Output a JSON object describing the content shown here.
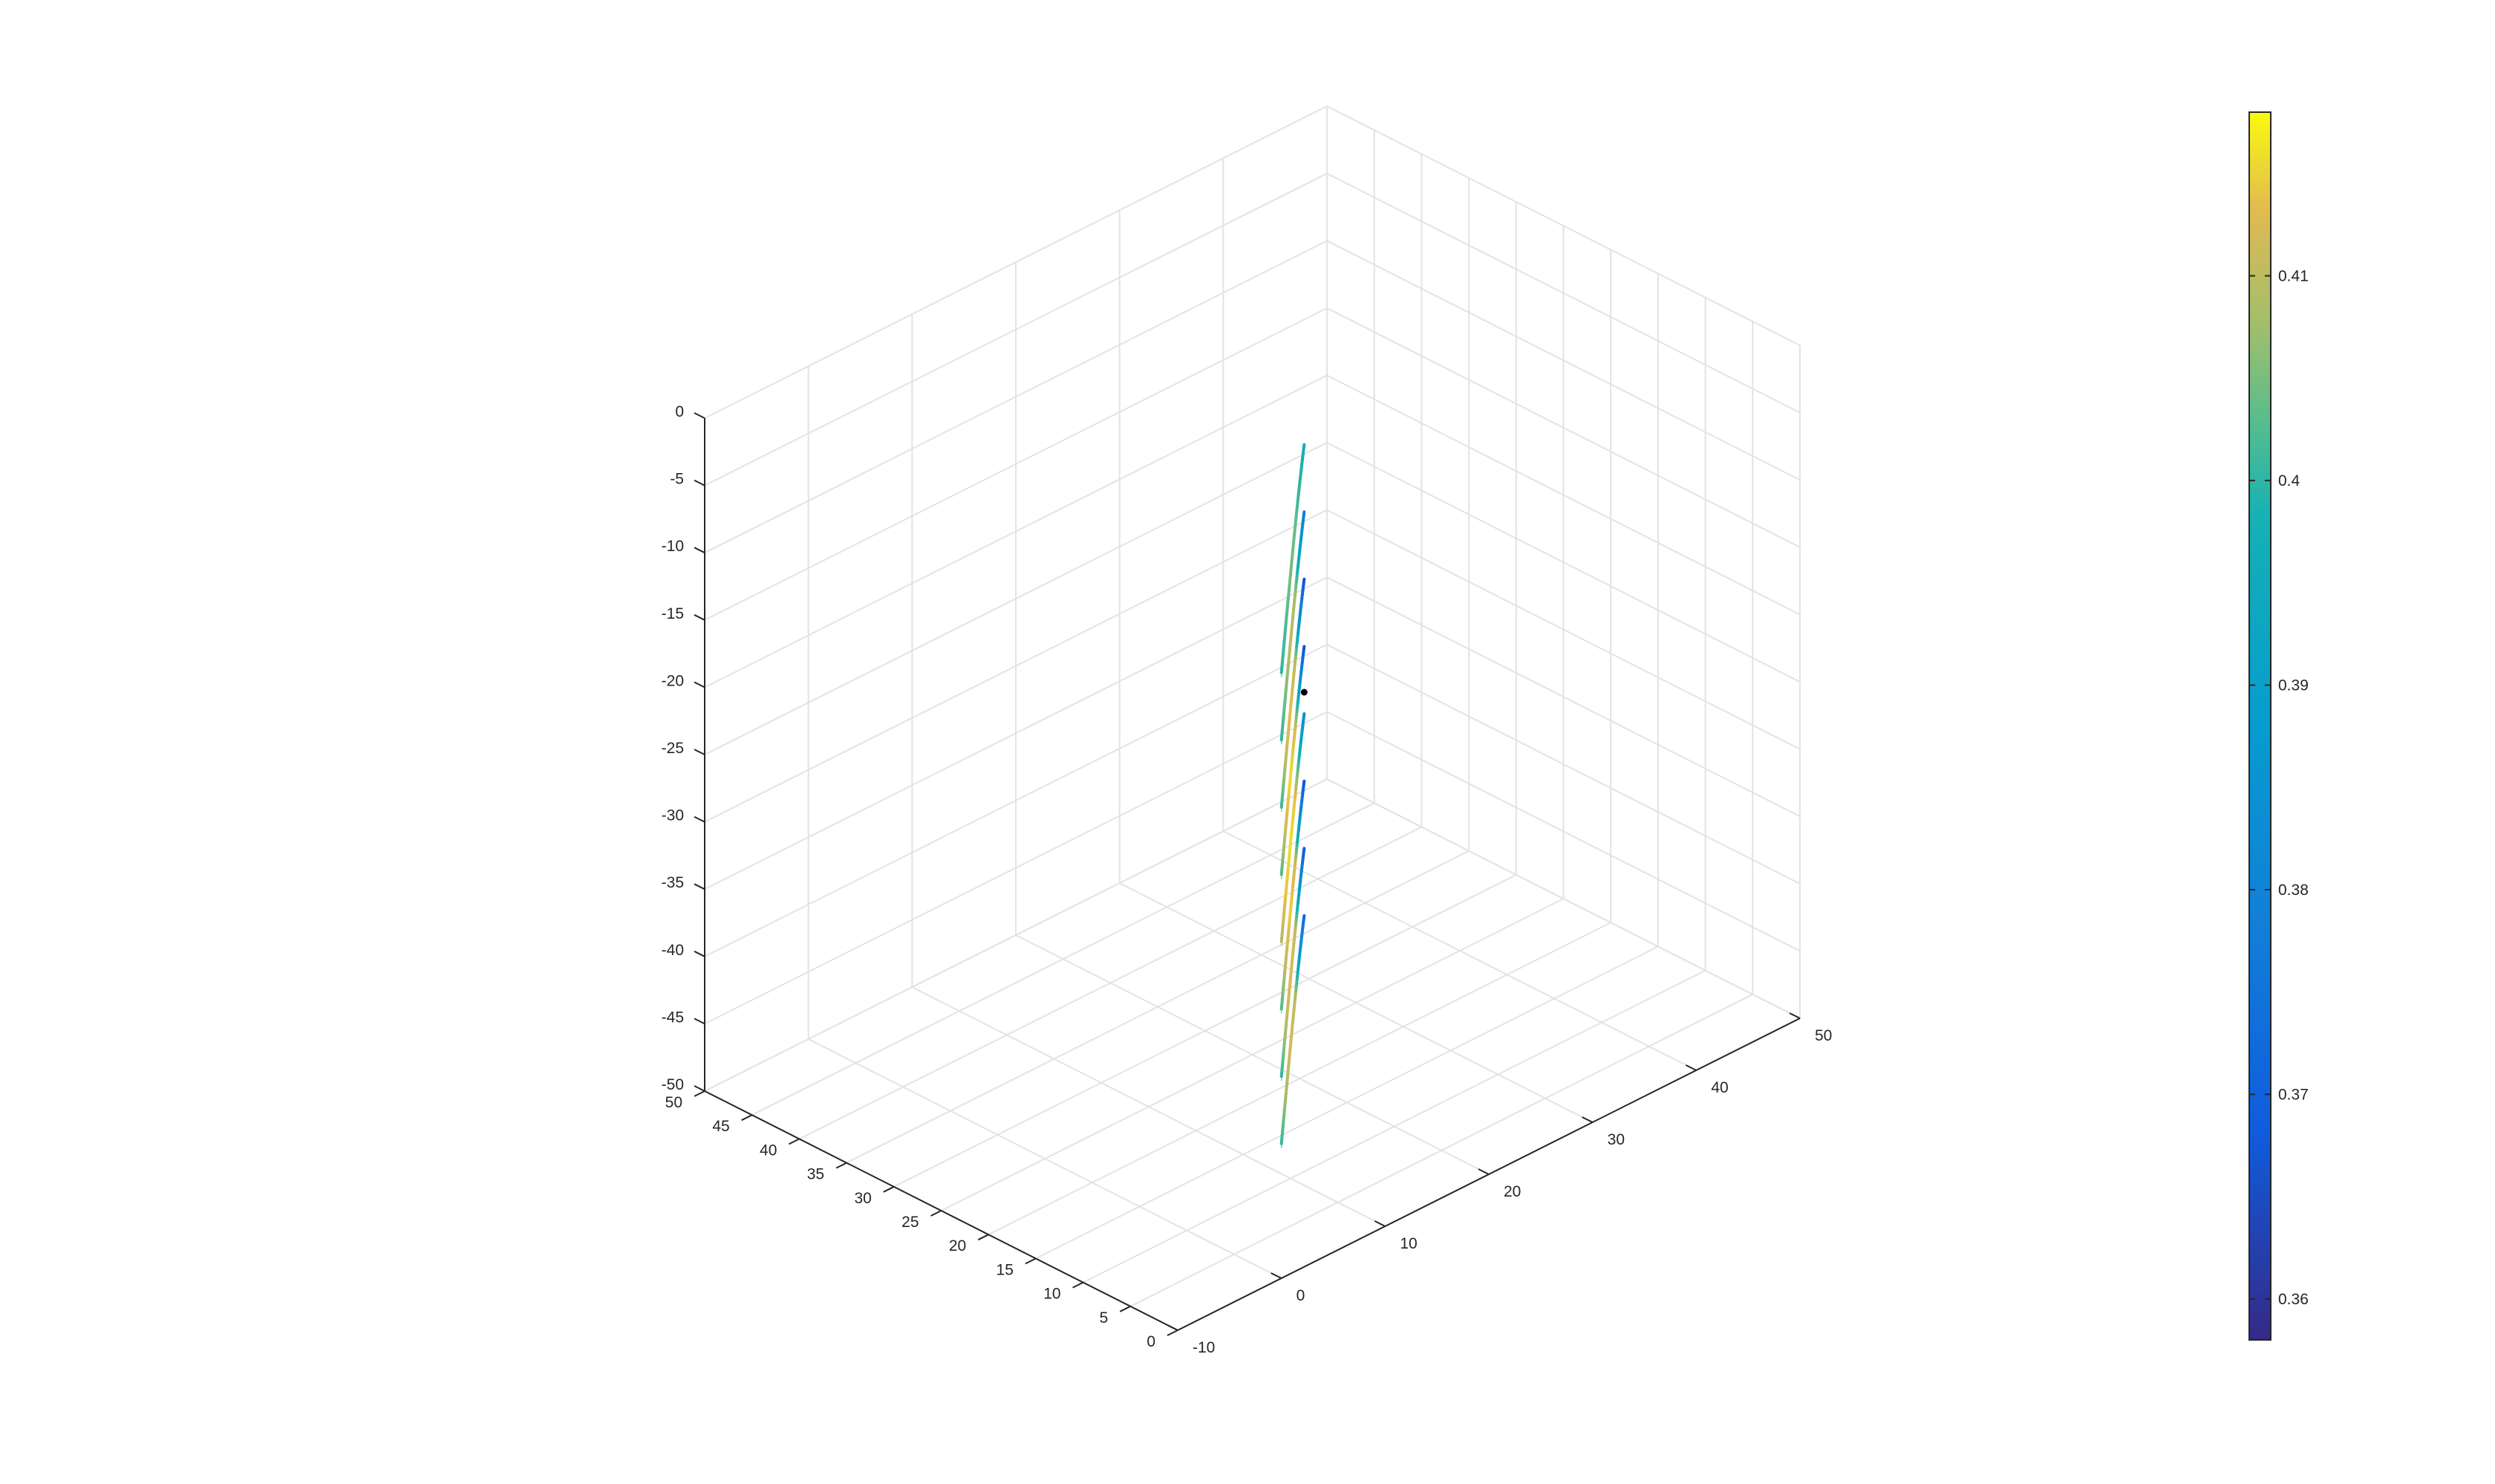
{
  "chart_data": {
    "type": "line",
    "view": "3d",
    "title": "",
    "xlabel": "",
    "ylabel": "",
    "zlabel": "",
    "grid": true,
    "axes": {
      "x": {
        "lim": [
          -10,
          50
        ],
        "ticks": [
          -10,
          0,
          10,
          20,
          30,
          40,
          50
        ],
        "tick_labels": [
          "-10",
          "0",
          "10",
          "20",
          "30",
          "40",
          "50"
        ]
      },
      "y": {
        "lim": [
          0,
          50
        ],
        "ticks": [
          0,
          5,
          10,
          15,
          20,
          25,
          30,
          35,
          40,
          45,
          50
        ],
        "tick_labels": [
          "0",
          "5",
          "10",
          "15",
          "20",
          "25",
          "30",
          "35",
          "40",
          "45",
          "50"
        ]
      },
      "z": {
        "lim": [
          -50,
          0
        ],
        "ticks": [
          -50,
          -45,
          -40,
          -35,
          -30,
          -25,
          -20,
          -15,
          -10,
          -5,
          0
        ],
        "tick_labels": [
          "-50",
          "-45",
          "-40",
          "-35",
          "-30",
          "-25",
          "-20",
          "-15",
          "-10",
          "-5",
          "0"
        ]
      }
    },
    "colorbar": {
      "location": "right",
      "colormap": "parula",
      "lim": [
        0.358,
        0.418
      ],
      "ticks": [
        0.36,
        0.37,
        0.38,
        0.39,
        0.4,
        0.41
      ],
      "tick_labels": [
        "0.36",
        "0.37",
        "0.38",
        "0.39",
        "0.4",
        "0.41"
      ]
    },
    "series": [
      {
        "z": -5,
        "x_range": [
          0,
          25
        ],
        "values": [
          0.4,
          0.402,
          0.405,
          0.404,
          0.4,
          0.397
        ]
      },
      {
        "z": -10,
        "x_range": [
          0,
          25
        ],
        "values": [
          0.4,
          0.405,
          0.41,
          0.408,
          0.392,
          0.378
        ]
      },
      {
        "z": -15,
        "x_range": [
          0,
          25
        ],
        "values": [
          0.4,
          0.41,
          0.414,
          0.41,
          0.386,
          0.366
        ]
      },
      {
        "z": -20,
        "x_range": [
          0,
          25
        ],
        "values": [
          0.402,
          0.412,
          0.416,
          0.413,
          0.39,
          0.366
        ]
      },
      {
        "z": -25,
        "x_range": [
          0,
          25
        ],
        "values": [
          0.409,
          0.414,
          0.416,
          0.414,
          0.398,
          0.382
        ]
      },
      {
        "z": -30,
        "x_range": [
          0,
          25
        ],
        "values": [
          0.402,
          0.411,
          0.415,
          0.412,
          0.388,
          0.366
        ]
      },
      {
        "z": -35,
        "x_range": [
          0,
          25
        ],
        "values": [
          0.4,
          0.409,
          0.413,
          0.411,
          0.388,
          0.368
        ]
      },
      {
        "z": -40,
        "x_range": [
          0,
          25
        ],
        "values": [
          0.4,
          0.408,
          0.412,
          0.41,
          0.39,
          0.372
        ]
      }
    ],
    "marker_point": {
      "x": 25,
      "y": 25,
      "z": -25
    }
  }
}
